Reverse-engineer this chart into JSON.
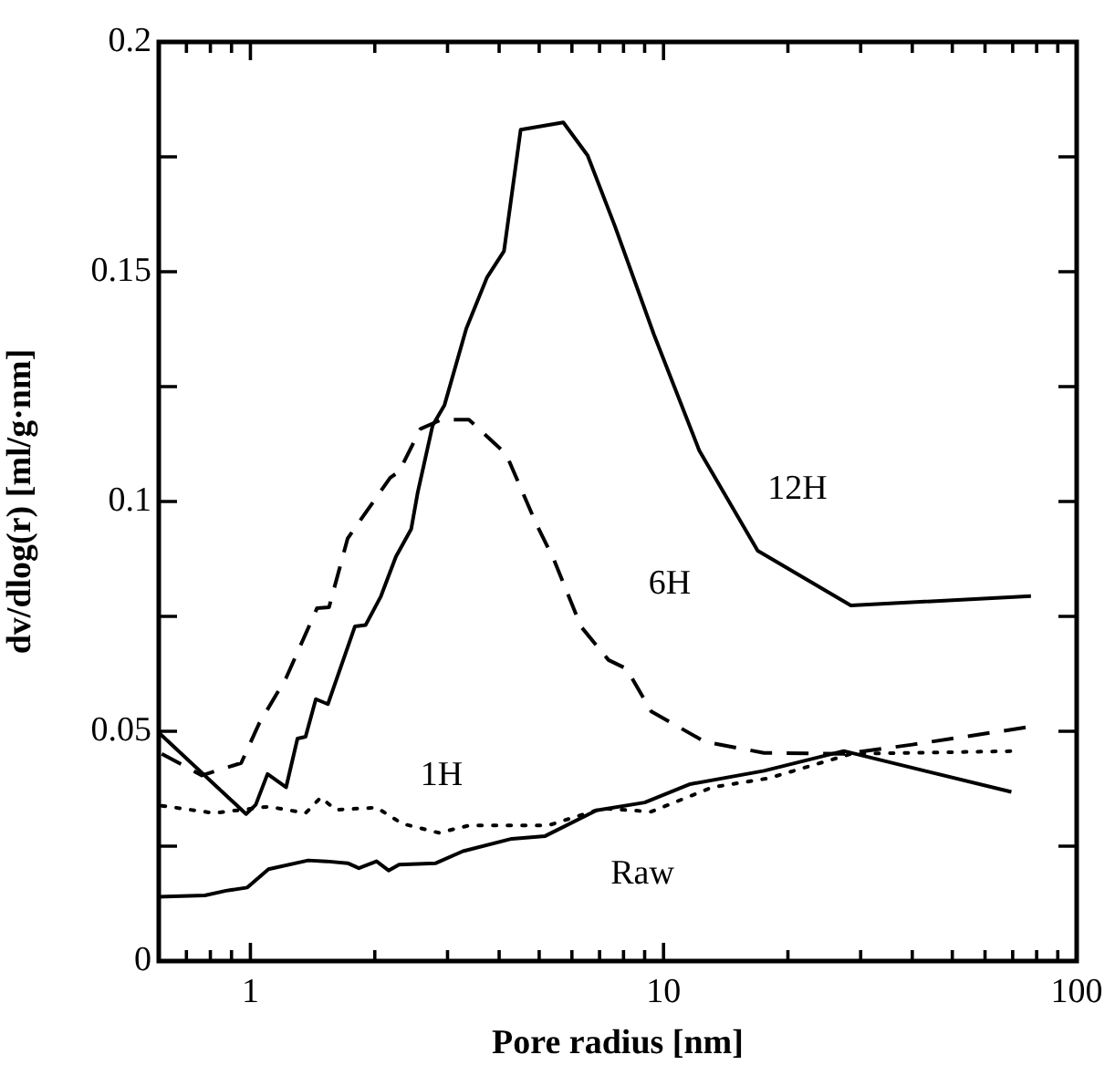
{
  "chart_data": {
    "type": "line",
    "xlabel": "Pore radius [nm]",
    "ylabel": "dv/dlog(r) [ml/g·nm]",
    "log": "x",
    "grid": false,
    "legend": false,
    "marker": "none",
    "xlim": [
      0.6,
      100
    ],
    "xticks": [
      {
        "value": 0.7,
        "label": null
      },
      {
        "value": 0.8,
        "label": null
      },
      {
        "value": 0.9,
        "label": null
      },
      1,
      {
        "value": 2,
        "label": null
      },
      {
        "value": 3,
        "label": null
      },
      {
        "value": 4,
        "label": null
      },
      {
        "value": 5,
        "label": null
      },
      {
        "value": 6,
        "label": null
      },
      {
        "value": 7,
        "label": null
      },
      {
        "value": 8,
        "label": null
      },
      {
        "value": 9,
        "label": null
      },
      10,
      {
        "value": 20,
        "label": null
      },
      {
        "value": 30,
        "label": null
      },
      {
        "value": 40,
        "label": null
      },
      {
        "value": 50,
        "label": null
      },
      {
        "value": 60,
        "label": null
      },
      {
        "value": 70,
        "label": null
      },
      {
        "value": 80,
        "label": null
      },
      {
        "value": 90,
        "label": null
      },
      100
    ],
    "ylim": [
      0,
      0.2
    ],
    "yticks": [
      0,
      {
        "value": 0.025,
        "label": null
      },
      0.05,
      {
        "value": 0.075,
        "label": null
      },
      0.1,
      {
        "value": 0.125,
        "label": null
      },
      0.15,
      {
        "value": 0.175,
        "label": null
      },
      0.2
    ],
    "series": [
      {
        "name": "12H",
        "color": "#000000",
        "line_style": "solid",
        "x": [
          0.6,
          0.976,
          1.03,
          1.1,
          1.22,
          1.3,
          1.36,
          1.44,
          1.54,
          1.79,
          1.9,
          2.07,
          2.25,
          2.45,
          2.54,
          2.76,
          2.95,
          3.33,
          3.74,
          4.11,
          4.51,
          5.72,
          6.55,
          7.62,
          9.48,
          12.2,
          16.9,
          28.4,
          77.5
        ],
        "values": [
          0.0497,
          0.032,
          0.034,
          0.0407,
          0.0378,
          0.0484,
          0.0488,
          0.057,
          0.0559,
          0.0728,
          0.0731,
          0.0794,
          0.088,
          0.094,
          0.1019,
          0.1165,
          0.121,
          0.1376,
          0.1488,
          0.1545,
          0.1809,
          0.1825,
          0.1753,
          0.16,
          0.1363,
          0.1111,
          0.0893,
          0.0774,
          0.0794
        ]
      },
      {
        "name": "6H",
        "color": "#000000",
        "line_style": "dashed",
        "x": [
          0.61,
          0.763,
          0.95,
          1.05,
          1.22,
          1.45,
          1.55,
          1.72,
          2.18,
          2.29,
          2.58,
          2.9,
          3.38,
          4.07,
          4.21,
          4.91,
          5.43,
          6.31,
          7.36,
          8.14,
          9.34,
          12.6,
          17.5,
          27.6,
          40,
          77.5
        ],
        "values": [
          0.0451,
          0.0404,
          0.0431,
          0.0517,
          0.0616,
          0.0768,
          0.077,
          0.092,
          0.1052,
          0.1065,
          0.1158,
          0.1178,
          0.1178,
          0.1111,
          0.1092,
          0.0953,
          0.0873,
          0.0728,
          0.0655,
          0.0636,
          0.0543,
          0.0477,
          0.0453,
          0.0451,
          0.0471,
          0.051
        ]
      },
      {
        "name": "1H",
        "color": "#000000",
        "line_style": "dotted",
        "x": [
          0.61,
          0.816,
          1.106,
          1.36,
          1.48,
          1.61,
          2.02,
          2.33,
          2.86,
          3.38,
          5.25,
          7.11,
          9.34,
          13.1,
          18,
          28.5,
          72.4
        ],
        "values": [
          0.0338,
          0.0322,
          0.0336,
          0.0322,
          0.0356,
          0.0329,
          0.0334,
          0.0299,
          0.0279,
          0.0295,
          0.0295,
          0.0332,
          0.0325,
          0.0378,
          0.0398,
          0.0451,
          0.0457
        ]
      },
      {
        "name": "Raw",
        "color": "#000000",
        "line_style": "solid",
        "x": [
          0.6,
          0.776,
          0.873,
          0.983,
          1.106,
          1.38,
          1.53,
          1.72,
          1.83,
          2.02,
          2.16,
          2.29,
          2.81,
          3.27,
          4.29,
          5.17,
          6.88,
          9,
          11.6,
          17.5,
          27.3,
          69.5
        ],
        "values": [
          0.014,
          0.0143,
          0.0153,
          0.016,
          0.02,
          0.0219,
          0.0217,
          0.0213,
          0.0202,
          0.0217,
          0.0197,
          0.021,
          0.0213,
          0.0239,
          0.0266,
          0.0272,
          0.0328,
          0.0345,
          0.0385,
          0.0414,
          0.0457,
          0.0368
        ]
      }
    ]
  }
}
